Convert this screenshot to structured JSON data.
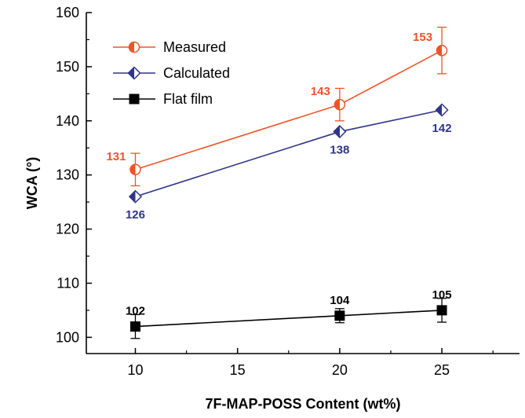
{
  "chart_data": {
    "type": "line",
    "xlabel": "7F-MAP-POSS Content (wt%)",
    "ylabel": "WCA (°)",
    "xlim": [
      7.6,
      28.8
    ],
    "ylim": [
      97.0,
      160.0
    ],
    "xticks": [
      10,
      15,
      20,
      25
    ],
    "yticks": [
      100,
      110,
      120,
      130,
      140,
      150,
      160
    ],
    "legend_position": "top-left",
    "series": [
      {
        "name": "Measured",
        "color": "#f0532a",
        "marker": "circle-half",
        "x": [
          10,
          20,
          25
        ],
        "y": [
          131,
          143,
          153
        ],
        "error": [
          3,
          3,
          4.3
        ],
        "labels": [
          "131",
          "143",
          "153"
        ],
        "label_position": "above-left"
      },
      {
        "name": "Calculated",
        "color": "#2e3589",
        "marker": "diamond-half",
        "x": [
          10,
          20,
          25
        ],
        "y": [
          126,
          138,
          142
        ],
        "error": [
          0,
          0,
          0
        ],
        "labels": [
          "126",
          "138",
          "142"
        ],
        "label_position": "below"
      },
      {
        "name": "Flat film",
        "color": "#000000",
        "marker": "square",
        "x": [
          10,
          20,
          25
        ],
        "y": [
          102,
          104,
          105
        ],
        "error": [
          2.2,
          1.3,
          2.2
        ],
        "labels": [
          "102",
          "104",
          "105"
        ],
        "label_position": "above"
      }
    ]
  }
}
